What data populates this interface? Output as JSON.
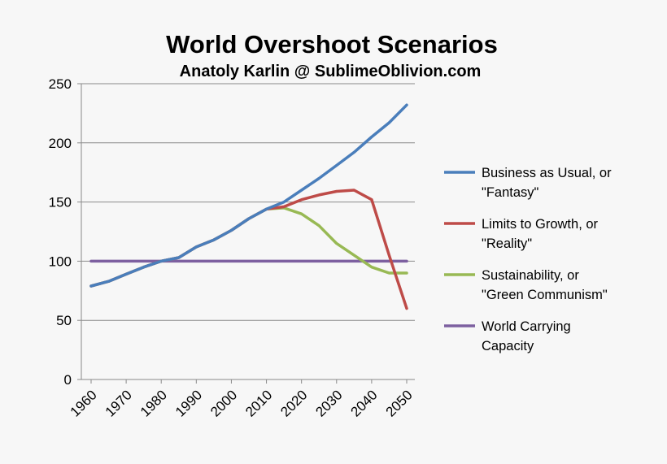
{
  "chart_data": {
    "type": "line",
    "title": "World Overshoot Scenarios",
    "subtitle": "Anatoly Karlin @ SublimeOblivion.com",
    "xlabel": "",
    "ylabel": "",
    "ylim": [
      0,
      250
    ],
    "yticks": [
      0,
      50,
      100,
      150,
      200,
      250
    ],
    "xlim": [
      1960,
      2050
    ],
    "xticks": [
      1960,
      1970,
      1980,
      1990,
      2000,
      2010,
      2020,
      2030,
      2040,
      2050
    ],
    "grid": true,
    "legend_position": "right",
    "x": [
      1960,
      1965,
      1970,
      1975,
      1980,
      1985,
      1990,
      1995,
      2000,
      2005,
      2010,
      2015,
      2020,
      2025,
      2030,
      2035,
      2040,
      2045,
      2050
    ],
    "series": [
      {
        "name": "Business as Usual, or \"Fantasy\"",
        "legend_lines": [
          "Business as Usual, or",
          "\"Fantasy\""
        ],
        "color": "#4a7ebb",
        "values": [
          79,
          83,
          89,
          95,
          100,
          103,
          112,
          118,
          126,
          136,
          144,
          150,
          160,
          170,
          181,
          192,
          205,
          217,
          232
        ]
      },
      {
        "name": "Limits to Growth, or \"Reality\"",
        "legend_lines": [
          "Limits to Growth, or",
          "\"Reality\""
        ],
        "color": "#be4b48",
        "values": [
          79,
          83,
          89,
          95,
          100,
          103,
          112,
          118,
          126,
          136,
          144,
          146,
          152,
          156,
          159,
          160,
          152,
          105,
          60
        ]
      },
      {
        "name": "Sustainability, or \"Green Communism\"",
        "legend_lines": [
          "Sustainability, or",
          "\"Green Communism\""
        ],
        "color": "#98b954",
        "values": [
          79,
          83,
          89,
          95,
          100,
          103,
          112,
          118,
          126,
          136,
          144,
          145,
          140,
          130,
          115,
          105,
          95,
          90,
          90
        ]
      },
      {
        "name": "World Carrying Capacity",
        "legend_lines": [
          "World Carrying",
          "Capacity"
        ],
        "color": "#7d60a0",
        "values": [
          100,
          100,
          100,
          100,
          100,
          100,
          100,
          100,
          100,
          100,
          100,
          100,
          100,
          100,
          100,
          100,
          100,
          100,
          100
        ]
      }
    ]
  }
}
